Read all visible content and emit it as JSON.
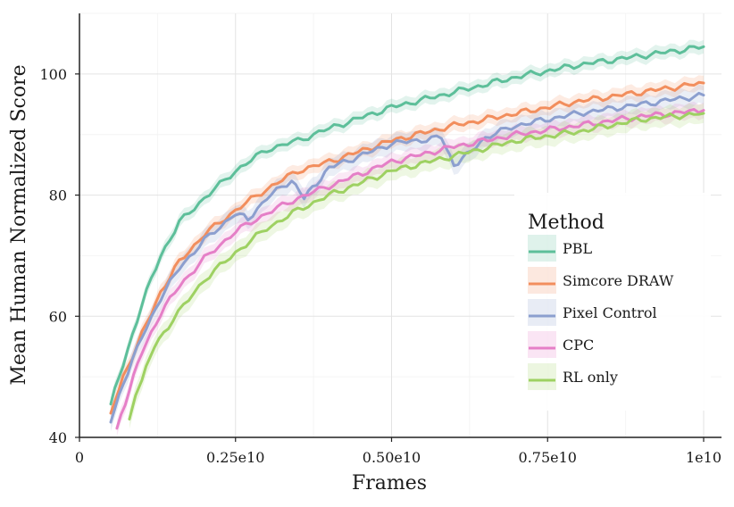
{
  "chart_data": {
    "type": "line",
    "title": "",
    "xlabel": "Frames",
    "ylabel": "Mean Human Normalized Score",
    "xlim": [
      0,
      10000000000
    ],
    "ylim": [
      40,
      110
    ],
    "x_ticks": [
      0,
      2500000000,
      5000000000,
      7500000000,
      10000000000
    ],
    "x_tick_labels": [
      "0",
      "0.25e10",
      "0.50e10",
      "0.75e10",
      "1e10"
    ],
    "y_ticks": [
      40,
      60,
      80,
      100
    ],
    "y_tick_labels": [
      "40",
      "60",
      "80",
      "100"
    ],
    "grid": true,
    "legend": {
      "title": "Method",
      "position": "right"
    },
    "series": [
      {
        "name": "PBL",
        "color": "#5dbf9a",
        "x": [
          500000000,
          700000000,
          1000000000,
          1300000000,
          1600000000,
          2000000000,
          2500000000,
          3000000000,
          3500000000,
          4000000000,
          5000000000,
          6000000000,
          7000000000,
          8000000000,
          9000000000,
          10000000000
        ],
        "values": [
          45.5,
          52,
          62,
          70,
          75.5,
          79.5,
          84,
          87.5,
          89,
          91,
          94.5,
          97,
          99.5,
          101.5,
          103,
          104.5
        ],
        "band": 0.8
      },
      {
        "name": "Simcore DRAW",
        "color": "#f28e5d",
        "x": [
          500000000,
          700000000,
          1000000000,
          1300000000,
          1600000000,
          2000000000,
          2500000000,
          3000000000,
          3500000000,
          4000000000,
          5000000000,
          6000000000,
          7000000000,
          8000000000,
          9000000000,
          10000000000
        ],
        "values": [
          44,
          50,
          57,
          64,
          69,
          73.5,
          77.5,
          81,
          84,
          85.5,
          89,
          91.5,
          93.5,
          95.5,
          97,
          98.5
        ],
        "band": 0.9
      },
      {
        "name": "Pixel Control",
        "color": "#8c9fcf",
        "x": [
          500000000,
          700000000,
          1000000000,
          1300000000,
          1600000000,
          2000000000,
          2500000000,
          2700000000,
          3000000000,
          3400000000,
          3600000000,
          3800000000,
          4000000000,
          5000000000,
          5800000000,
          6000000000,
          6200000000,
          6500000000,
          7000000000,
          8000000000,
          9000000000,
          10000000000
        ],
        "values": [
          42.5,
          49,
          56.5,
          63,
          68,
          72.5,
          77,
          76,
          79.5,
          82.5,
          79.5,
          82,
          84.5,
          88.5,
          89.5,
          85,
          86.5,
          89.5,
          91.5,
          93.5,
          95,
          96.5
        ],
        "band": 1.2
      },
      {
        "name": "CPC",
        "color": "#e57fc7",
        "x": [
          600000000,
          800000000,
          1000000000,
          1300000000,
          1600000000,
          2000000000,
          2500000000,
          3000000000,
          3500000000,
          4000000000,
          5000000000,
          6000000000,
          7000000000,
          8000000000,
          9000000000,
          10000000000
        ],
        "values": [
          41.5,
          48,
          54,
          60.5,
          65,
          69.5,
          74,
          77,
          79.5,
          81.5,
          85.5,
          88,
          90,
          91.5,
          93,
          94
        ],
        "band": 1.0
      },
      {
        "name": "RL only",
        "color": "#9ed162",
        "x": [
          800000000,
          900000000,
          1000000000,
          1200000000,
          1500000000,
          2000000000,
          2500000000,
          3000000000,
          3500000000,
          4000000000,
          5000000000,
          6000000000,
          7000000000,
          8000000000,
          9000000000,
          10000000000
        ],
        "values": [
          43,
          47.5,
          49.5,
          55,
          59.5,
          66,
          70.5,
          74.5,
          77.5,
          80,
          84,
          86.5,
          89,
          90.5,
          92.5,
          93.5
        ],
        "band": 1.3
      }
    ]
  }
}
